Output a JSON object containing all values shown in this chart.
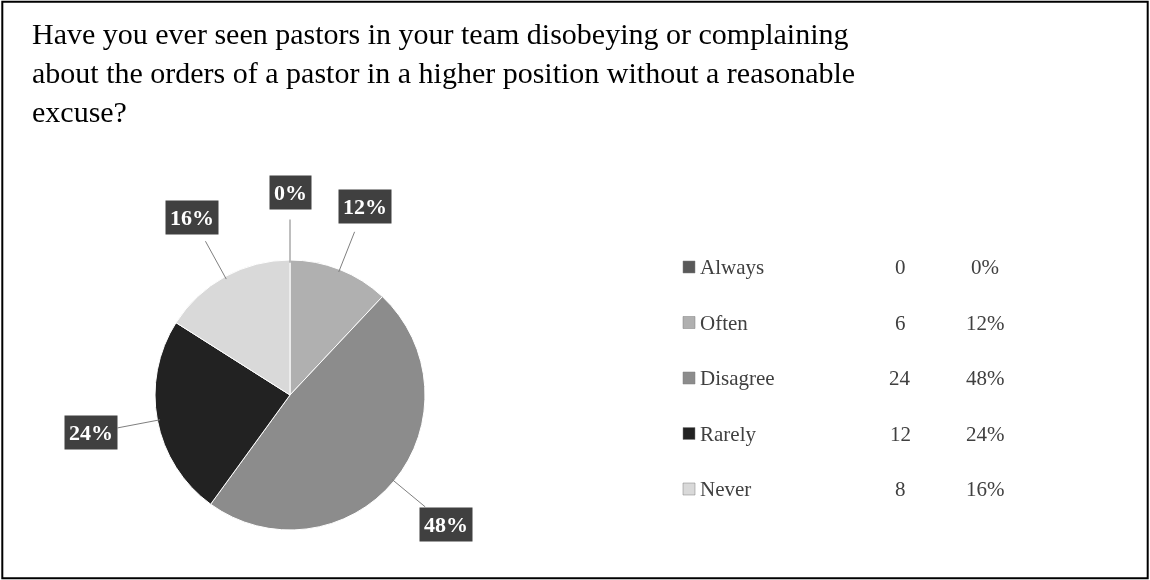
{
  "chart_data": {
    "type": "pie",
    "title": "Have you ever seen pastors in your team disobeying or complaining about the orders of a pastor in a higher position without a reasonable excuse?",
    "categories": [
      "Always",
      "Often",
      "Disagree",
      "Rarely",
      "Never"
    ],
    "values": [
      0,
      12,
      48,
      24,
      16
    ],
    "annotations": [
      "0",
      "6",
      "24",
      "12",
      "8"
    ],
    "value_labels": [
      "0%",
      "12%",
      "48%",
      "24%",
      "16%"
    ],
    "colors": [
      "#595959",
      "#b0b0b0",
      "#8c8c8c",
      "#222222",
      "#d9d9d9"
    ],
    "legend": "right"
  }
}
